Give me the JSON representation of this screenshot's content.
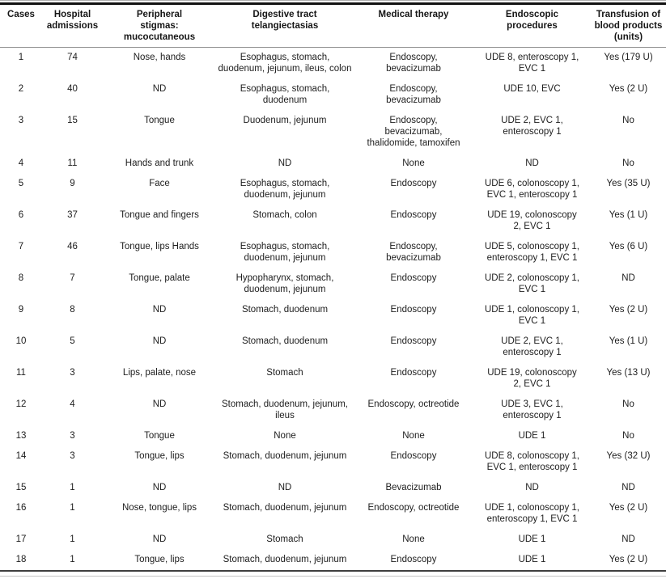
{
  "table": {
    "columns": [
      "Cases",
      "Hospital\nadmissions",
      "Peripheral\nstigmas:\nmucocutaneous",
      "Digestive tract\ntelangiectasias",
      "Medical therapy",
      "Endoscopic\nprocedures",
      "Transfusion of\nblood products\n(units)"
    ],
    "rows": [
      [
        "1",
        "74",
        "Nose, hands",
        "Esophagus, stomach,\nduodenum, jejunum, ileus, colon",
        "Endoscopy,\nbevacizumab",
        "UDE 8, enteroscopy 1,\nEVC 1",
        "Yes (179 U)"
      ],
      [
        "2",
        "40",
        "ND",
        "Esophagus, stomach,\nduodenum",
        "Endoscopy,\nbevacizumab",
        "UDE 10, EVC",
        "Yes (2 U)"
      ],
      [
        "3",
        "15",
        "Tongue",
        "Duodenum, jejunum",
        "Endoscopy,\nbevacizumab,\nthalidomide, tamoxifen",
        "UDE 2, EVC 1,\nenteroscopy 1",
        "No"
      ],
      [
        "4",
        "11",
        "Hands and trunk",
        "ND",
        "None",
        "ND",
        "No"
      ],
      [
        "5",
        "9",
        "Face",
        "Esophagus, stomach,\nduodenum, jejunum",
        "Endoscopy",
        "UDE 6, colonoscopy 1,\nEVC 1, enteroscopy 1",
        "Yes (35 U)"
      ],
      [
        "6",
        "37",
        "Tongue and fingers",
        "Stomach, colon",
        "Endoscopy",
        "UDE 19, colonoscopy\n2, EVC 1",
        "Yes (1 U)"
      ],
      [
        "7",
        "46",
        "Tongue, lips Hands",
        "Esophagus, stomach,\nduodenum, jejunum",
        "Endoscopy,\nbevacizumab",
        "UDE 5, colonoscopy 1,\nenteroscopy 1, EVC 1",
        "Yes (6 U)"
      ],
      [
        "8",
        "7",
        "Tongue, palate",
        "Hypopharynx, stomach,\nduodenum, jejunum",
        "Endoscopy",
        "UDE 2, colonoscopy 1,\nEVC 1",
        "ND"
      ],
      [
        "9",
        "8",
        "ND",
        "Stomach, duodenum",
        "Endoscopy",
        "UDE 1, colonoscopy 1,\nEVC 1",
        "Yes (2 U)"
      ],
      [
        "10",
        "5",
        "ND",
        "Stomach, duodenum",
        "Endoscopy",
        "UDE 2, EVC 1,\nenteroscopy 1",
        "Yes (1 U)"
      ],
      [
        "11",
        "3",
        "Lips, palate, nose",
        "Stomach",
        "Endoscopy",
        "UDE 19, colonoscopy\n2, EVC 1",
        "Yes (13 U)"
      ],
      [
        "12",
        "4",
        "ND",
        "Stomach, duodenum, jejunum,\nileus",
        "Endoscopy, octreotide",
        "UDE 3, EVC 1,\nenteroscopy 1",
        "No"
      ],
      [
        "13",
        "3",
        "Tongue",
        "None",
        "None",
        "UDE 1",
        "No"
      ],
      [
        "14",
        "3",
        "Tongue, lips",
        "Stomach, duodenum, jejunum",
        "Endoscopy",
        "UDE 8, colonoscopy 1,\nEVC 1, enteroscopy 1",
        "Yes (32 U)"
      ],
      [
        "15",
        "1",
        "ND",
        "ND",
        "Bevacizumab",
        "ND",
        "ND"
      ],
      [
        "16",
        "1",
        "Nose, tongue, lips",
        "Stomach, duodenum, jejunum",
        "Endoscopy, octreotide",
        "UDE 1, colonoscopy 1,\nenteroscopy 1, EVC 1",
        "Yes (2 U)"
      ],
      [
        "17",
        "1",
        "ND",
        "Stomach",
        "None",
        "UDE 1",
        "ND"
      ],
      [
        "18",
        "1",
        "Tongue, lips",
        "Stomach, duodenum, jejunum",
        "Endoscopy",
        "UDE 1",
        "Yes (2 U)"
      ]
    ]
  },
  "colors": {
    "text": "#202020",
    "top_rule": "#121212",
    "header_underline": "#8e8e8e",
    "bottom_rule_dark": "#3f3f3f",
    "edge_rule_light": "#c4c4c4"
  }
}
